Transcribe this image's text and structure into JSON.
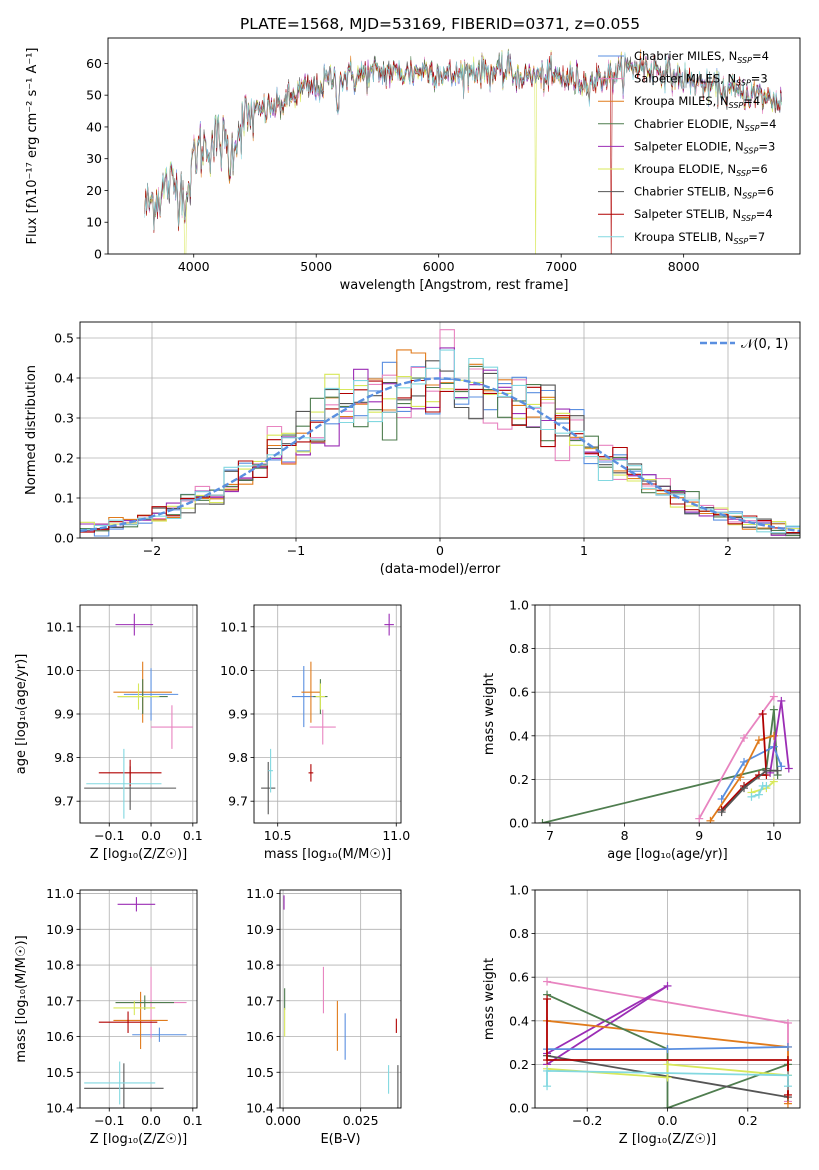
{
  "title": "PLATE=1568, MJD=53169, FIBERID=0371, z=0.055",
  "palette": {
    "Chabrier MILES": "#5a8fe0",
    "Salpeter MILES": "#e884c0",
    "Kroupa MILES": "#e07b1c",
    "Chabrier ELODIE": "#4f7d4f",
    "Salpeter ELODIE": "#9b2db5",
    "Kroupa ELODIE": "#d8e85a",
    "Chabrier STELIB": "#555555",
    "Salpeter STELIB": "#b00000",
    "Kroupa STELIB": "#82d8e0",
    "normal": "#5a8fe0"
  },
  "chart_data": [
    {
      "id": "spectrum",
      "type": "line",
      "title": "PLATE=1568, MJD=53169, FIBERID=0371, z=0.055",
      "xlabel": "wavelength [Angstrom, rest frame]",
      "ylabel": "Flux [fλ10⁻¹⁷ erg cm⁻² s⁻¹ A⁻¹]",
      "xlim": [
        3300,
        8950
      ],
      "ylim": [
        0,
        68
      ],
      "xticks": [
        4000,
        5000,
        6000,
        7000,
        8000
      ],
      "yticks": [
        0,
        10,
        20,
        30,
        40,
        50,
        60
      ],
      "grid": false,
      "legend_position": "top-right",
      "spectrum_anchors": [
        [
          3600,
          15
        ],
        [
          3700,
          18
        ],
        [
          3800,
          22
        ],
        [
          3900,
          20
        ],
        [
          3950,
          30
        ],
        [
          4050,
          33
        ],
        [
          4200,
          36
        ],
        [
          4300,
          33
        ],
        [
          4400,
          42
        ],
        [
          4500,
          44
        ],
        [
          4700,
          47
        ],
        [
          4900,
          52
        ],
        [
          5000,
          52
        ],
        [
          5100,
          55
        ],
        [
          5200,
          55
        ],
        [
          5300,
          56
        ],
        [
          5500,
          57
        ],
        [
          5700,
          57
        ],
        [
          5900,
          58
        ],
        [
          6100,
          56
        ],
        [
          6300,
          58
        ],
        [
          6500,
          57
        ],
        [
          6700,
          56
        ],
        [
          6900,
          56
        ],
        [
          7100,
          55
        ],
        [
          7200,
          54
        ],
        [
          7400,
          56
        ],
        [
          7600,
          59
        ],
        [
          7800,
          58
        ],
        [
          8000,
          55
        ],
        [
          8200,
          53
        ],
        [
          8400,
          51
        ],
        [
          8600,
          50
        ],
        [
          8800,
          48
        ]
      ],
      "series": [
        {
          "name": "Chabrier MILES, N_SSP=4",
          "label": "Chabrier MILES, N",
          "sub": "SSP",
          "n": "=4"
        },
        {
          "name": "Salpeter MILES, N_SSP=3",
          "label": "Salpeter MILES, N",
          "sub": "SSP",
          "n": "=3"
        },
        {
          "name": "Kroupa MILES, N_SSP=4",
          "label": "Kroupa MILES, N",
          "sub": "SSP",
          "n": "=4"
        },
        {
          "name": "Chabrier ELODIE, N_SSP=4",
          "label": "Chabrier ELODIE, N",
          "sub": "SSP",
          "n": "=4"
        },
        {
          "name": "Salpeter ELODIE, N_SSP=3",
          "label": "Salpeter ELODIE, N",
          "sub": "SSP",
          "n": "=3"
        },
        {
          "name": "Kroupa ELODIE, N_SSP=6",
          "label": "Kroupa ELODIE, N",
          "sub": "SSP",
          "n": "=6"
        },
        {
          "name": "Chabrier STELIB, N_SSP=6",
          "label": "Chabrier STELIB, N",
          "sub": "SSP",
          "n": "=6"
        },
        {
          "name": "Salpeter STELIB, N_SSP=4",
          "label": "Salpeter STELIB, N",
          "sub": "SSP",
          "n": "=4"
        },
        {
          "name": "Kroupa STELIB, N_SSP=7",
          "label": "Kroupa STELIB, N",
          "sub": "SSP",
          "n": "=7"
        }
      ]
    },
    {
      "id": "residuals",
      "type": "histogram",
      "xlabel": "(data-model)/error",
      "ylabel": "Normed distribution",
      "xlim": [
        -2.5,
        2.5
      ],
      "ylim": [
        0,
        0.54
      ],
      "xticks": [
        -2,
        -1,
        0,
        1,
        2
      ],
      "yticks": [
        0.0,
        0.1,
        0.2,
        0.3,
        0.4,
        0.5
      ],
      "grid": true,
      "legend_position": "top-right",
      "legend_label": "𝒩(0, 1)",
      "bin_width": 0.1
    },
    {
      "id": "age_vs_Z",
      "type": "scatter",
      "xlabel": "Z [log₁₀(Z/Z☉)]",
      "ylabel": "age  [log₁₀(age/yr)]",
      "xlim": [
        -0.17,
        0.11
      ],
      "ylim": [
        9.65,
        10.15
      ],
      "xticks": [
        -0.1,
        0.0,
        0.1
      ],
      "yticks": [
        9.7,
        9.8,
        9.9,
        10.0,
        10.1
      ],
      "grid": true,
      "points": [
        {
          "s": 0,
          "x": 0.0,
          "y": 9.945,
          "xerr": 0.065,
          "yerr": 0.06
        },
        {
          "s": 1,
          "x": 0.05,
          "y": 9.87,
          "xerr": 0.05,
          "yerr": 0.05
        },
        {
          "s": 2,
          "x": -0.02,
          "y": 9.95,
          "xerr": 0.07,
          "yerr": 0.07
        },
        {
          "s": 3,
          "x": -0.02,
          "y": 9.94,
          "xerr": 0.06,
          "yerr": 0.04
        },
        {
          "s": 4,
          "x": -0.04,
          "y": 10.105,
          "xerr": 0.045,
          "yerr": 0.025
        },
        {
          "s": 5,
          "x": -0.03,
          "y": 9.94,
          "xerr": 0.05,
          "yerr": 0.03
        },
        {
          "s": 6,
          "x": -0.05,
          "y": 9.73,
          "xerr": 0.11,
          "yerr": 0.05
        },
        {
          "s": 7,
          "x": -0.05,
          "y": 9.765,
          "xerr": 0.075,
          "yerr": 0.03
        },
        {
          "s": 8,
          "x": -0.065,
          "y": 9.74,
          "xerr": 0.09,
          "yerr": 0.08
        }
      ]
    },
    {
      "id": "age_vs_mass",
      "type": "scatter",
      "xlabel": "mass [log₁₀(M/M☉)]",
      "ylabel": "",
      "xlim": [
        10.4,
        11.02
      ],
      "ylim": [
        9.65,
        10.15
      ],
      "xticks": [
        10.5,
        11.0
      ],
      "yticks": [
        9.7,
        9.8,
        9.9,
        10.0,
        10.1
      ],
      "grid": true,
      "points": [
        {
          "s": 0,
          "x": 10.61,
          "y": 9.94,
          "xerr": 0.05,
          "yerr": 0.07
        },
        {
          "s": 1,
          "x": 10.69,
          "y": 9.87,
          "xerr": 0.055,
          "yerr": 0.04
        },
        {
          "s": 2,
          "x": 10.64,
          "y": 9.95,
          "xerr": 0.04,
          "yerr": 0.07
        },
        {
          "s": 3,
          "x": 10.68,
          "y": 9.94,
          "xerr": 0.03,
          "yerr": 0.04
        },
        {
          "s": 4,
          "x": 10.97,
          "y": 10.105,
          "xerr": 0.02,
          "yerr": 0.025
        },
        {
          "s": 5,
          "x": 10.68,
          "y": 9.94,
          "xerr": 0.02,
          "yerr": 0.03
        },
        {
          "s": 6,
          "x": 10.46,
          "y": 9.73,
          "xerr": 0.03,
          "yerr": 0.06
        },
        {
          "s": 7,
          "x": 10.64,
          "y": 9.765,
          "xerr": 0.01,
          "yerr": 0.02
        },
        {
          "s": 8,
          "x": 10.47,
          "y": 9.77,
          "xerr": 0.01,
          "yerr": 0.05
        }
      ]
    },
    {
      "id": "weight_vs_age",
      "type": "line",
      "xlabel": "age  [log₁₀(age/yr)]",
      "ylabel": "mass weight",
      "xlim": [
        6.8,
        10.35
      ],
      "ylim": [
        0,
        1.0
      ],
      "xticks": [
        7,
        8,
        9,
        10
      ],
      "yticks": [
        0.0,
        0.2,
        0.4,
        0.6,
        0.8,
        1.0
      ],
      "grid": true,
      "series": [
        {
          "s": 3,
          "points": [
            [
              6.9,
              0.0
            ],
            [
              9.9,
              0.25
            ],
            [
              10.0,
              0.52
            ],
            [
              10.05,
              0.22
            ]
          ]
        },
        {
          "s": 1,
          "points": [
            [
              9.0,
              0.02
            ],
            [
              9.6,
              0.39
            ],
            [
              10.0,
              0.58
            ]
          ]
        },
        {
          "s": 0,
          "points": [
            [
              9.3,
              0.11
            ],
            [
              9.6,
              0.28
            ],
            [
              10.0,
              0.35
            ],
            [
              10.1,
              0.26
            ]
          ]
        },
        {
          "s": 2,
          "points": [
            [
              9.15,
              0.01
            ],
            [
              9.55,
              0.21
            ],
            [
              9.8,
              0.38
            ],
            [
              10.0,
              0.4
            ]
          ]
        },
        {
          "s": 7,
          "points": [
            [
              9.3,
              0.06
            ],
            [
              9.6,
              0.17
            ],
            [
              9.8,
              0.22
            ],
            [
              9.9,
              0.22
            ],
            [
              9.85,
              0.5
            ]
          ]
        },
        {
          "s": 4,
          "points": [
            [
              9.95,
              0.23
            ],
            [
              10.1,
              0.56
            ],
            [
              10.2,
              0.25
            ]
          ]
        },
        {
          "s": 6,
          "points": [
            [
              9.3,
              0.05
            ],
            [
              9.6,
              0.16
            ],
            [
              9.9,
              0.24
            ],
            [
              10.05,
              0.24
            ]
          ]
        },
        {
          "s": 5,
          "points": [
            [
              9.7,
              0.14
            ],
            [
              9.9,
              0.16
            ],
            [
              10.0,
              0.19
            ]
          ]
        },
        {
          "s": 8,
          "points": [
            [
              9.7,
              0.12
            ],
            [
              9.8,
              0.13
            ],
            [
              9.85,
              0.17
            ],
            [
              9.9,
              0.17
            ]
          ]
        }
      ]
    },
    {
      "id": "mass_vs_Z",
      "type": "scatter",
      "xlabel": "Z [log₁₀(Z/Z☉)]",
      "ylabel": "mass [log₁₀(M/M☉)]",
      "xlim": [
        -0.17,
        0.11
      ],
      "ylim": [
        10.4,
        11.01
      ],
      "xticks": [
        -0.1,
        0.0,
        0.1
      ],
      "yticks": [
        10.4,
        10.5,
        10.6,
        10.7,
        10.8,
        10.9,
        11.0
      ],
      "grid": true,
      "points": [
        {
          "s": 0,
          "x": 0.02,
          "y": 10.605,
          "xerr": 0.065,
          "yerr": 0.02
        },
        {
          "s": 1,
          "x": 0.0,
          "y": 10.695,
          "xerr": 0.085,
          "yerr": 0.1
        },
        {
          "s": 2,
          "x": -0.025,
          "y": 10.645,
          "xerr": 0.065,
          "yerr": 0.08
        },
        {
          "s": 3,
          "x": -0.015,
          "y": 10.695,
          "xerr": 0.07,
          "yerr": 0.02
        },
        {
          "s": 4,
          "x": -0.035,
          "y": 10.97,
          "xerr": 0.045,
          "yerr": 0.02
        },
        {
          "s": 5,
          "x": -0.04,
          "y": 10.68,
          "xerr": 0.05,
          "yerr": 0.02
        },
        {
          "s": 6,
          "x": -0.065,
          "y": 10.455,
          "xerr": 0.095,
          "yerr": 0.07
        },
        {
          "s": 7,
          "x": -0.055,
          "y": 10.64,
          "xerr": 0.07,
          "yerr": 0.03
        },
        {
          "s": 8,
          "x": -0.075,
          "y": 10.47,
          "xerr": 0.085,
          "yerr": 0.06
        }
      ]
    },
    {
      "id": "mass_vs_EBV",
      "type": "scatter",
      "xlabel": "E(B-V)",
      "ylabel": "",
      "xlim": [
        -0.001,
        0.038
      ],
      "ylim": [
        10.4,
        11.01
      ],
      "xticks": [
        0.0,
        0.025
      ],
      "yticks": [
        10.4,
        10.5,
        10.6,
        10.7,
        10.8,
        10.9,
        11.0
      ],
      "grid": true,
      "points": [
        {
          "s": 0,
          "x": 0.02,
          "y": 10.6,
          "xerr": 0,
          "yerr": 0.065
        },
        {
          "s": 1,
          "x": 0.013,
          "y": 10.73,
          "xerr": 0,
          "yerr": 0.065
        },
        {
          "s": 2,
          "x": 0.0175,
          "y": 10.63,
          "xerr": 0,
          "yerr": 0.07
        },
        {
          "s": 3,
          "x": 0.0005,
          "y": 10.705,
          "xerr": 0,
          "yerr": 0.03
        },
        {
          "s": 4,
          "x": 0.0003,
          "y": 10.975,
          "xerr": 0,
          "yerr": 0.02
        },
        {
          "s": 5,
          "x": 0.0005,
          "y": 10.64,
          "xerr": 0,
          "yerr": 0.04
        },
        {
          "s": 6,
          "x": 0.037,
          "y": 10.46,
          "xerr": 0,
          "yerr": 0.06
        },
        {
          "s": 7,
          "x": 0.0365,
          "y": 10.63,
          "xerr": 0,
          "yerr": 0.02
        },
        {
          "s": 8,
          "x": 0.034,
          "y": 10.48,
          "xerr": 0,
          "yerr": 0.04
        }
      ]
    },
    {
      "id": "weight_vs_Z",
      "type": "line",
      "xlabel": "Z [log₁₀(Z/Z☉)]",
      "ylabel": "mass weight",
      "xlim": [
        -0.33,
        0.33
      ],
      "ylim": [
        0,
        1.0
      ],
      "xticks": [
        -0.2,
        0.0,
        0.2
      ],
      "yticks": [
        0.0,
        0.2,
        0.4,
        0.6,
        0.8,
        1.0
      ],
      "grid": true,
      "series": [
        {
          "s": 1,
          "points": [
            [
              -0.3,
              0.58
            ],
            [
              0.3,
              0.39
            ],
            [
              0.3,
              0.03
            ]
          ]
        },
        {
          "s": 4,
          "points": [
            [
              -0.3,
              0.25
            ],
            [
              0.0,
              0.56
            ],
            [
              -0.3,
              0.2
            ]
          ]
        },
        {
          "s": 2,
          "points": [
            [
              -0.3,
              0.4
            ],
            [
              0.3,
              0.28
            ],
            [
              0.3,
              0.02
            ]
          ]
        },
        {
          "s": 3,
          "points": [
            [
              -0.3,
              0.52
            ],
            [
              0.0,
              0.27
            ],
            [
              0.0,
              0.0
            ],
            [
              0.3,
              0.2
            ]
          ]
        },
        {
          "s": 0,
          "points": [
            [
              -0.3,
              0.27
            ],
            [
              0.0,
              0.27
            ],
            [
              0.3,
              0.28
            ]
          ]
        },
        {
          "s": 6,
          "points": [
            [
              -0.3,
              0.24
            ],
            [
              0.3,
              0.05
            ]
          ]
        },
        {
          "s": 7,
          "points": [
            [
              -0.3,
              0.5
            ],
            [
              -0.3,
              0.22
            ],
            [
              0.3,
              0.22
            ],
            [
              0.3,
              0.06
            ]
          ]
        },
        {
          "s": 5,
          "points": [
            [
              -0.3,
              0.18
            ],
            [
              0.0,
              0.14
            ],
            [
              0.0,
              0.2
            ],
            [
              0.3,
              0.15
            ]
          ]
        },
        {
          "s": 8,
          "points": [
            [
              -0.3,
              0.1
            ],
            [
              -0.3,
              0.17
            ],
            [
              0.3,
              0.15
            ],
            [
              0.3,
              0.1
            ]
          ]
        }
      ]
    }
  ]
}
